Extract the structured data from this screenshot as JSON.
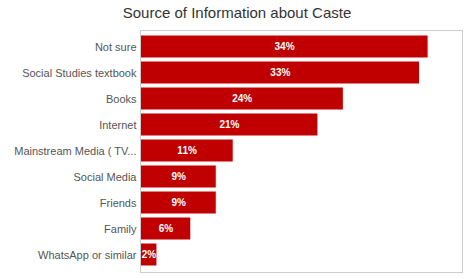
{
  "chart_data": {
    "type": "bar",
    "orientation": "horizontal",
    "title": "Source of Information about Caste",
    "categories": [
      "WhatsApp or similar",
      "Family",
      "Friends",
      "Social Media",
      "Mainstream Media ( TV...",
      "Internet",
      "Books",
      "Social Studies textbook",
      "Not sure"
    ],
    "values": [
      2,
      6,
      9,
      9,
      11,
      21,
      24,
      33,
      34
    ],
    "value_labels": [
      "2%",
      "6%",
      "9%",
      "9%",
      "11%",
      "21%",
      "24%",
      "33%",
      "34%"
    ],
    "color": "#c00000",
    "xlim": [
      0,
      38
    ],
    "data_labels": true,
    "tick_labels": "y",
    "grid": false
  }
}
